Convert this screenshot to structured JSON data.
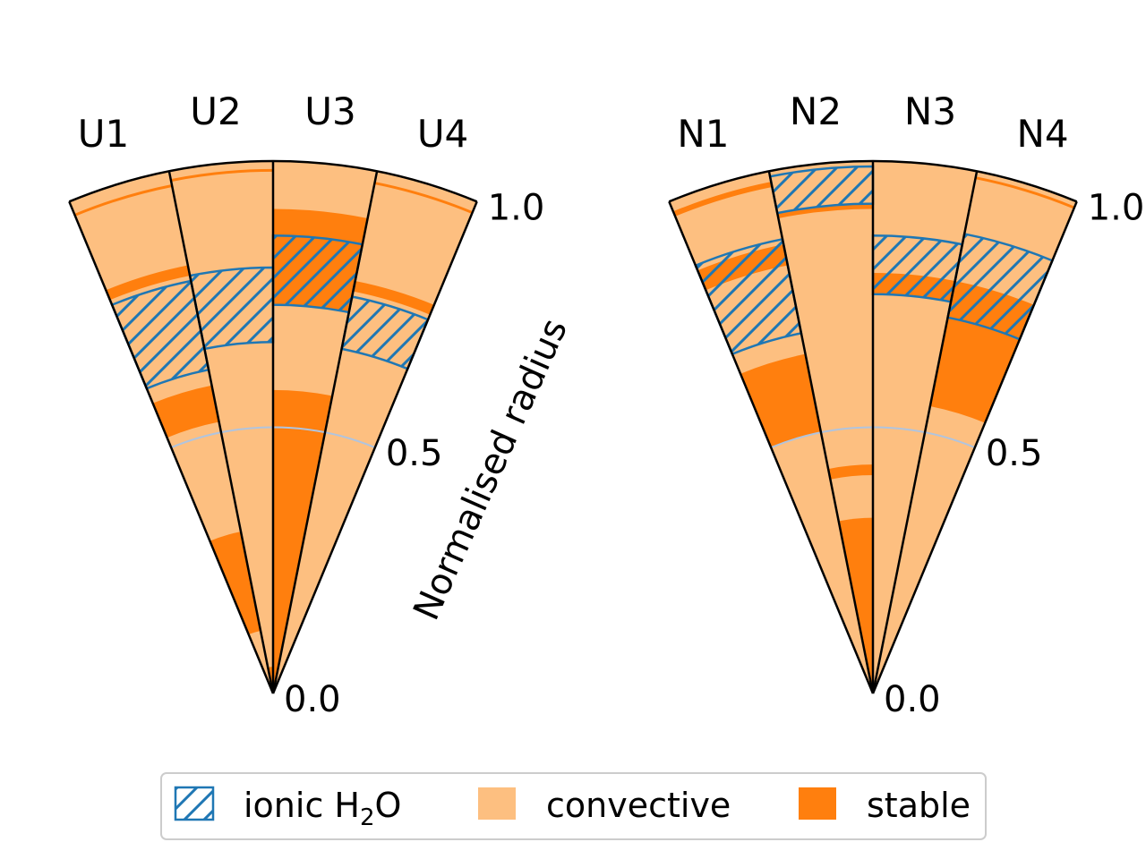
{
  "colors": {
    "convective": "#fdbf80",
    "stable": "#ff7f0e",
    "ionic_hatch": "#1f77b4",
    "half_radius_line": "#b0c4de",
    "outline": "#000000"
  },
  "chart_data": [
    {
      "type": "polar-wedge",
      "ylabel": "Normalised radius",
      "r_ticks": [
        "0.0",
        "0.5",
        "1.0"
      ],
      "rlim": [
        0,
        1
      ],
      "series": [
        {
          "name": "U1",
          "stable": [
            [
              0.12,
              0.31
            ],
            [
              0.52,
              0.59
            ],
            [
              0.8,
              0.82
            ],
            [
              0.97,
              0.975
            ]
          ],
          "ionic": [
            [
              0.62,
              0.79
            ]
          ]
        },
        {
          "name": "U2",
          "stable": [
            [
              0.0,
              0.05
            ],
            [
              0.98,
              0.985
            ]
          ],
          "ionic": [
            [
              0.66,
              0.8
            ]
          ]
        },
        {
          "name": "U3",
          "stable": [
            [
              0.0,
              0.57
            ],
            [
              0.73,
              0.91
            ]
          ],
          "ionic": [
            [
              0.73,
              0.86
            ]
          ]
        },
        {
          "name": "U4",
          "stable": [
            [
              0.77,
              0.79
            ],
            [
              0.975,
              0.98
            ]
          ],
          "ionic": [
            [
              0.66,
              0.76
            ]
          ]
        }
      ]
    },
    {
      "type": "polar-wedge",
      "ylabel": "",
      "r_ticks": [
        "0.0",
        "0.5",
        "1.0"
      ],
      "rlim": [
        0,
        1
      ],
      "series": [
        {
          "name": "N1",
          "stable": [
            [
              0.5,
              0.65
            ],
            [
              0.82,
              0.86
            ],
            [
              0.97,
              0.98
            ]
          ],
          "ionic": [
            [
              0.69,
              0.87
            ]
          ]
        },
        {
          "name": "N2",
          "stable": [
            [
              0.0,
              0.33
            ],
            [
              0.41,
              0.43
            ],
            [
              0.91,
              0.92
            ]
          ],
          "ionic": [
            [
              0.92,
              0.99
            ]
          ]
        },
        {
          "name": "N3",
          "stable": [
            [
              0.75,
              0.79
            ]
          ],
          "ionic": [
            [
              0.75,
              0.86
            ]
          ]
        },
        {
          "name": "N4",
          "stable": [
            [
              0.55,
              0.79
            ],
            [
              0.985,
              0.99
            ]
          ],
          "ionic": [
            [
              0.72,
              0.88
            ]
          ]
        }
      ]
    }
  ],
  "legend": {
    "items": [
      {
        "key": "ionic",
        "label_main": "ionic H",
        "label_sub": "2",
        "label_tail": "O"
      },
      {
        "key": "convective",
        "label": "convective"
      },
      {
        "key": "stable",
        "label": "stable"
      }
    ]
  }
}
